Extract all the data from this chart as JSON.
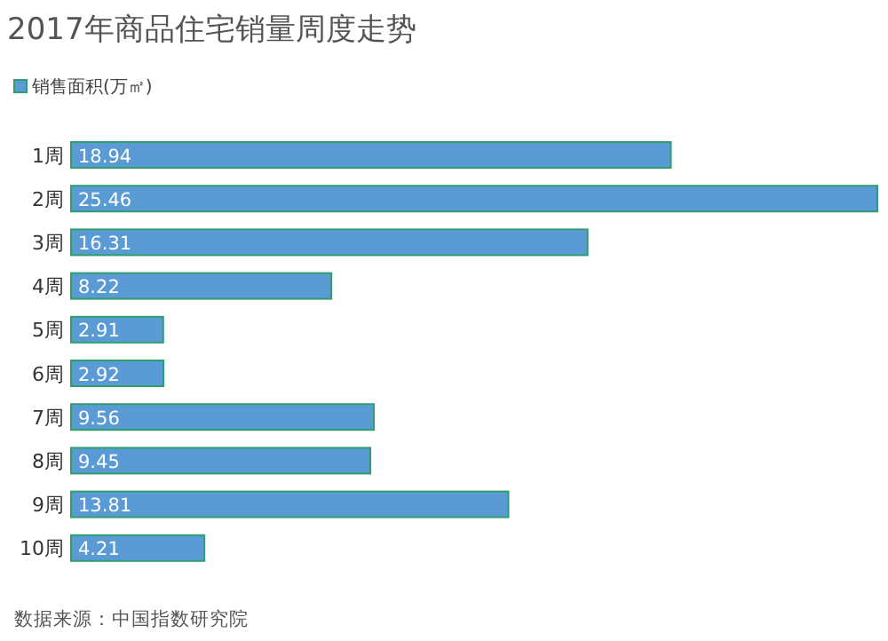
{
  "chart_data": {
    "type": "bar",
    "orientation": "horizontal",
    "title": "2017年商品住宅销量周度走势",
    "categories": [
      "1周",
      "2周",
      "3周",
      "4周",
      "5周",
      "6周",
      "7周",
      "8周",
      "9周",
      "10周"
    ],
    "series": [
      {
        "name": "销售面积(万㎡)",
        "color": "#5b9bd5",
        "values": [
          18.94,
          25.46,
          16.31,
          8.22,
          2.91,
          2.92,
          9.56,
          9.45,
          13.81,
          4.21
        ]
      }
    ],
    "data_labels": true,
    "legend": "top left",
    "annotations": [
      "数据来源：中国指数研究院"
    ]
  }
}
